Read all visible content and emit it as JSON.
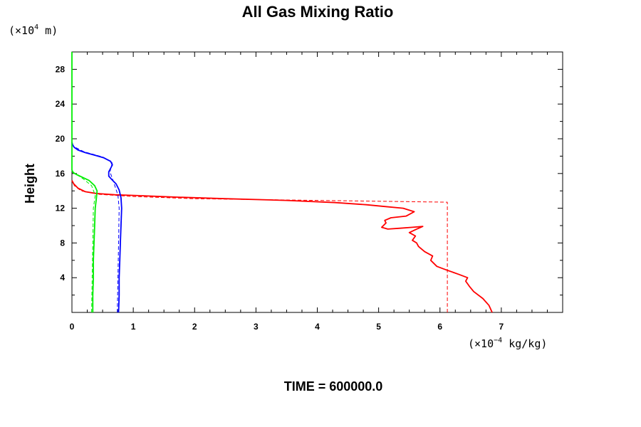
{
  "chart_data": {
    "type": "line",
    "title": "All Gas Mixing Ratio",
    "ylabel": "Height",
    "y_unit": {
      "prefix": "(×10",
      "exp": "4",
      "suffix": " m)"
    },
    "x_unit": {
      "prefix": "(×10",
      "exp": "−4",
      "suffix": " kg/kg)"
    },
    "footer": "TIME = 600000.0",
    "xlim": [
      0,
      8
    ],
    "ylim": [
      0,
      30
    ],
    "x_ticks": [
      0,
      1,
      2,
      3,
      4,
      5,
      6,
      7
    ],
    "y_ticks": [
      4,
      8,
      12,
      16,
      20,
      24,
      28
    ],
    "x_tick_labels": [
      "0",
      "1",
      "2",
      "3",
      "4",
      "5",
      "6",
      "7"
    ],
    "y_tick_labels": [
      "4",
      "8",
      "12",
      "16",
      "20",
      "24",
      "28"
    ],
    "grid": false,
    "legend": "none",
    "series": [
      {
        "color": "#ff0000",
        "style": "solid",
        "points": [
          [
            6.85,
            0
          ],
          [
            6.8,
            0.8
          ],
          [
            6.7,
            1.6
          ],
          [
            6.55,
            2.4
          ],
          [
            6.48,
            3.0
          ],
          [
            6.42,
            3.6
          ],
          [
            6.45,
            4.0
          ],
          [
            6.3,
            4.4
          ],
          [
            6.1,
            4.9
          ],
          [
            5.95,
            5.3
          ],
          [
            5.85,
            6.0
          ],
          [
            5.88,
            6.5
          ],
          [
            5.75,
            7.0
          ],
          [
            5.65,
            7.6
          ],
          [
            5.62,
            8.0
          ],
          [
            5.55,
            8.3
          ],
          [
            5.6,
            8.8
          ],
          [
            5.5,
            9.2
          ],
          [
            5.62,
            9.6
          ],
          [
            5.72,
            9.9
          ],
          [
            5.55,
            9.8
          ],
          [
            5.35,
            9.7
          ],
          [
            5.15,
            9.6
          ],
          [
            5.05,
            9.8
          ],
          [
            5.12,
            10.3
          ],
          [
            5.1,
            10.6
          ],
          [
            5.2,
            10.9
          ],
          [
            5.45,
            11.1
          ],
          [
            5.58,
            11.6
          ],
          [
            5.4,
            12.0
          ],
          [
            5.1,
            12.2
          ],
          [
            4.8,
            12.4
          ],
          [
            4.3,
            12.65
          ],
          [
            3.5,
            12.9
          ],
          [
            2.5,
            13.1
          ],
          [
            1.6,
            13.3
          ],
          [
            1.1,
            13.45
          ],
          [
            0.7,
            13.55
          ],
          [
            0.4,
            13.7
          ],
          [
            0.22,
            13.9
          ],
          [
            0.1,
            14.3
          ],
          [
            0.03,
            14.8
          ],
          [
            0,
            15.2
          ]
        ]
      },
      {
        "color": "#ff0000",
        "style": "dashed",
        "points": [
          [
            6.12,
            0
          ],
          [
            6.12,
            12.7
          ],
          [
            4.0,
            12.9
          ],
          [
            2.0,
            13.1
          ],
          [
            1.0,
            13.35
          ],
          [
            0.45,
            13.6
          ],
          [
            0.15,
            14.0
          ],
          [
            0.04,
            14.6
          ],
          [
            0,
            15.2
          ]
        ]
      },
      {
        "color": "#0000ff",
        "style": "solid",
        "points": [
          [
            0.76,
            0
          ],
          [
            0.77,
            2
          ],
          [
            0.77,
            4
          ],
          [
            0.78,
            6
          ],
          [
            0.79,
            8
          ],
          [
            0.8,
            10
          ],
          [
            0.81,
            12
          ],
          [
            0.8,
            13.2
          ],
          [
            0.77,
            14.1
          ],
          [
            0.72,
            14.8
          ],
          [
            0.65,
            15.3
          ],
          [
            0.6,
            15.7
          ],
          [
            0.6,
            16.2
          ],
          [
            0.63,
            16.6
          ],
          [
            0.66,
            17.0
          ],
          [
            0.63,
            17.4
          ],
          [
            0.52,
            17.8
          ],
          [
            0.38,
            18.1
          ],
          [
            0.22,
            18.4
          ],
          [
            0.1,
            18.7
          ],
          [
            0.04,
            19.0
          ],
          [
            0.01,
            19.3
          ],
          [
            0,
            19.6
          ]
        ]
      },
      {
        "color": "#0000ff",
        "style": "dashed",
        "points": [
          [
            0.74,
            0
          ],
          [
            0.75,
            4
          ],
          [
            0.76,
            8
          ],
          [
            0.77,
            12
          ],
          [
            0.75,
            13.5
          ],
          [
            0.68,
            15.0
          ],
          [
            0.62,
            16.2
          ],
          [
            0.66,
            17.3
          ],
          [
            0.5,
            17.9
          ],
          [
            0.2,
            18.5
          ],
          [
            0.03,
            19.1
          ],
          [
            0,
            19.5
          ]
        ]
      },
      {
        "color": "#00ee00",
        "style": "solid",
        "points": [
          [
            0.34,
            0
          ],
          [
            0.34,
            2
          ],
          [
            0.35,
            4
          ],
          [
            0.35,
            6
          ],
          [
            0.36,
            8
          ],
          [
            0.37,
            10
          ],
          [
            0.38,
            12
          ],
          [
            0.4,
            13.2
          ],
          [
            0.41,
            14.0
          ],
          [
            0.37,
            14.6
          ],
          [
            0.28,
            15.2
          ],
          [
            0.16,
            15.6
          ],
          [
            0.07,
            15.9
          ],
          [
            0.02,
            16.1
          ],
          [
            0,
            16.4
          ],
          [
            0,
            30
          ]
        ]
      },
      {
        "color": "#00ee00",
        "style": "dashed",
        "points": [
          [
            0.32,
            0
          ],
          [
            0.33,
            4
          ],
          [
            0.34,
            8
          ],
          [
            0.35,
            12
          ],
          [
            0.38,
            13.5
          ],
          [
            0.32,
            14.6
          ],
          [
            0.18,
            15.4
          ],
          [
            0.05,
            16.0
          ],
          [
            0,
            16.3
          ]
        ]
      }
    ]
  }
}
